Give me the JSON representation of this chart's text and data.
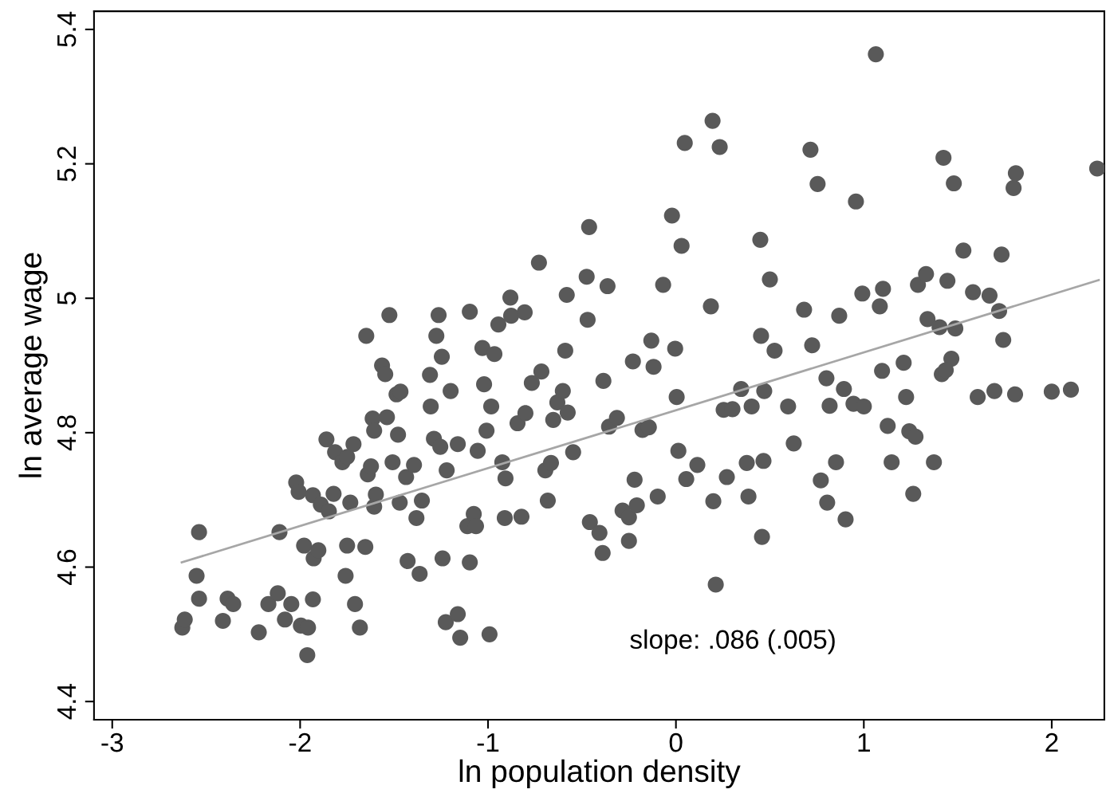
{
  "chart_data": {
    "type": "scatter",
    "xlabel": "ln population density",
    "ylabel": "ln average wage",
    "xlim": [
      -3.097,
      2.28
    ],
    "ylim": [
      4.373,
      5.427
    ],
    "xticks": [
      -3,
      -2,
      -1,
      0,
      1,
      2
    ],
    "yticks": [
      4.4,
      4.6,
      4.8,
      5,
      5.2,
      5.4
    ],
    "grid": false,
    "legend": false,
    "annotations": [
      "slope: .086 (.005)"
    ],
    "series": [
      {
        "marker": "circle",
        "color": "#595959",
        "x": [
          -2.627,
          -2.614,
          -2.538,
          -2.551,
          -2.538,
          -2.411,
          -2.386,
          -2.356,
          -2.22,
          -2.169,
          -2.119,
          -2.11,
          -2.081,
          -2.047,
          -2.021,
          -2.008,
          -1.996,
          -1.979,
          -1.962,
          -1.958,
          -1.932,
          -1.932,
          -1.928,
          -1.903,
          -1.89,
          -1.86,
          -1.847,
          -1.822,
          -1.814,
          -1.775,
          -1.75,
          -1.733,
          -1.716,
          -1.75,
          -1.758,
          -1.708,
          -1.682,
          -1.648,
          -1.653,
          -1.64,
          -1.623,
          -1.614,
          -1.606,
          -1.606,
          -1.597,
          -1.564,
          -1.547,
          -1.538,
          -1.525,
          -1.508,
          -1.487,
          -1.479,
          -1.466,
          -1.47,
          -1.436,
          -1.428,
          -1.394,
          -1.381,
          -1.364,
          -1.352,
          -1.309,
          -1.305,
          -1.288,
          -1.275,
          -1.263,
          -1.254,
          -1.246,
          -1.225,
          -1.242,
          -1.22,
          -1.199,
          -1.161,
          -1.148,
          -1.161,
          -1.097,
          -1.11,
          -1.097,
          -1.076,
          -1.064,
          -1.055,
          -1.03,
          -1.021,
          -1.008,
          -0.992,
          -0.983,
          -0.966,
          -0.945,
          -0.924,
          -0.907,
          -0.881,
          -0.877,
          -0.911,
          -0.843,
          -0.822,
          -0.805,
          -0.801,
          -0.767,
          -0.729,
          -0.716,
          -0.695,
          -0.682,
          -0.665,
          -0.653,
          -0.631,
          -0.602,
          -0.589,
          -0.581,
          -0.576,
          -0.547,
          -0.47,
          -0.475,
          -0.462,
          -0.458,
          -0.407,
          -0.39,
          -0.386,
          -0.364,
          -0.356,
          -0.314,
          -0.284,
          -0.25,
          -0.25,
          -0.229,
          -0.22,
          -0.208,
          -0.178,
          -0.144,
          -0.131,
          -0.119,
          -0.097,
          -0.068,
          -0.021,
          -0.004,
          0.004,
          0.013,
          0.03,
          0.047,
          0.055,
          0.114,
          0.186,
          0.195,
          0.199,
          0.212,
          0.233,
          0.254,
          0.271,
          0.301,
          0.347,
          0.377,
          0.386,
          0.403,
          0.449,
          0.453,
          0.458,
          0.466,
          0.47,
          0.5,
          0.525,
          0.597,
          0.627,
          0.682,
          0.716,
          0.725,
          0.754,
          0.771,
          0.801,
          0.805,
          0.818,
          0.852,
          0.869,
          0.894,
          0.903,
          0.945,
          0.958,
          0.992,
          1.0,
          1.064,
          1.085,
          1.097,
          1.102,
          1.127,
          1.148,
          1.212,
          1.225,
          1.242,
          1.263,
          1.275,
          1.288,
          1.331,
          1.339,
          1.373,
          1.403,
          1.424,
          1.445,
          1.466,
          1.479,
          1.487,
          1.53,
          1.581,
          1.606,
          1.669,
          1.695,
          1.733,
          1.72,
          1.742,
          1.797,
          1.805,
          1.809,
          2.0,
          2.102,
          2.242,
          1.415,
          1.436
        ],
        "values": [
          4.51,
          4.522,
          4.652,
          4.587,
          4.553,
          4.52,
          4.553,
          4.545,
          4.503,
          4.545,
          4.561,
          4.652,
          4.522,
          4.545,
          4.726,
          4.712,
          4.513,
          4.632,
          4.469,
          4.51,
          4.552,
          4.707,
          4.613,
          4.625,
          4.693,
          4.79,
          4.683,
          4.709,
          4.771,
          4.756,
          4.764,
          4.696,
          4.783,
          4.632,
          4.587,
          4.545,
          4.51,
          4.944,
          4.63,
          4.738,
          4.75,
          4.821,
          4.69,
          4.803,
          4.708,
          4.9,
          4.887,
          4.823,
          4.975,
          4.756,
          4.857,
          4.797,
          4.861,
          4.696,
          4.734,
          4.609,
          4.752,
          4.673,
          4.59,
          4.699,
          4.886,
          4.839,
          4.791,
          4.944,
          4.975,
          4.779,
          4.913,
          4.518,
          4.613,
          4.744,
          4.862,
          4.783,
          4.495,
          4.53,
          4.98,
          4.661,
          4.607,
          4.679,
          4.661,
          4.773,
          4.926,
          4.872,
          4.803,
          4.5,
          4.839,
          4.917,
          4.961,
          4.756,
          4.732,
          5.001,
          4.974,
          4.673,
          4.814,
          4.675,
          4.979,
          4.829,
          4.874,
          5.053,
          4.891,
          4.744,
          4.699,
          4.755,
          4.819,
          4.845,
          4.862,
          4.922,
          5.005,
          4.83,
          4.771,
          4.968,
          5.032,
          5.106,
          4.667,
          4.651,
          4.621,
          4.877,
          5.018,
          4.809,
          4.822,
          4.684,
          4.674,
          4.639,
          4.906,
          4.73,
          4.692,
          4.804,
          4.808,
          4.937,
          4.898,
          4.705,
          5.02,
          5.123,
          4.925,
          4.853,
          4.773,
          5.078,
          5.231,
          4.731,
          4.752,
          4.988,
          5.264,
          4.698,
          4.574,
          5.225,
          4.834,
          4.734,
          4.835,
          4.865,
          4.755,
          4.705,
          4.839,
          5.087,
          4.944,
          4.645,
          4.758,
          4.862,
          5.028,
          4.922,
          4.839,
          4.784,
          4.983,
          5.221,
          4.93,
          5.17,
          4.729,
          4.881,
          4.696,
          4.84,
          4.756,
          4.974,
          4.865,
          4.671,
          4.843,
          5.144,
          5.007,
          4.839,
          5.363,
          4.988,
          4.892,
          5.014,
          4.81,
          4.756,
          4.904,
          4.853,
          4.802,
          4.709,
          4.794,
          5.02,
          5.036,
          4.969,
          4.756,
          4.957,
          5.209,
          5.026,
          4.91,
          5.171,
          4.955,
          5.071,
          5.009,
          4.853,
          5.004,
          4.862,
          5.065,
          4.981,
          4.938,
          5.164,
          4.857,
          5.186,
          4.861,
          4.864,
          5.193,
          4.887,
          4.893
        ]
      },
      {
        "type": "line",
        "color": "#a6a6a6",
        "x": [
          -2.63,
          2.25
        ],
        "values": [
          4.607,
          5.027
        ],
        "line_style": "solid",
        "marker": "none"
      }
    ]
  }
}
